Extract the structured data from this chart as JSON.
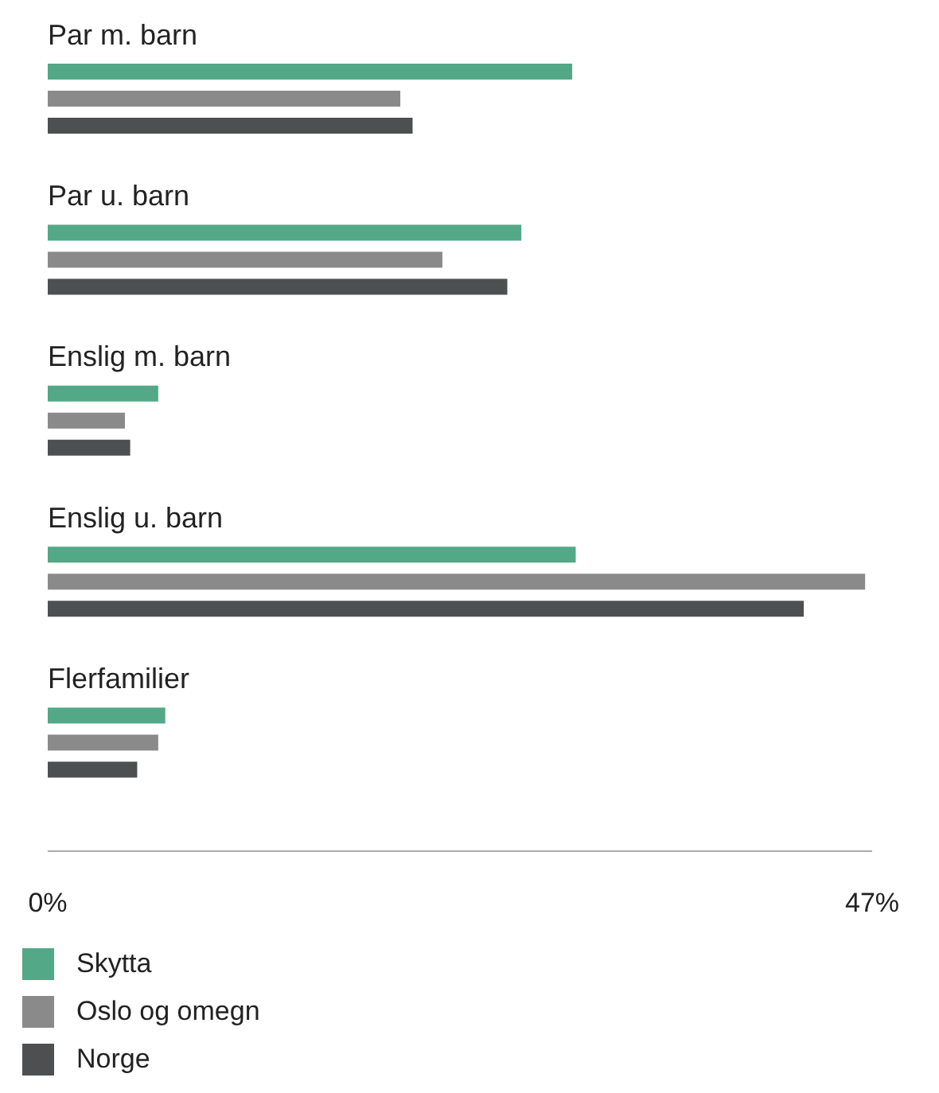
{
  "chart_data": {
    "type": "bar",
    "orientation": "horizontal",
    "categories": [
      "Par m. barn",
      "Par u. barn",
      "Enslig m. barn",
      "Enslig u. barn",
      "Flerfamilier"
    ],
    "series": [
      {
        "name": "Skytta",
        "color": "#52a887",
        "values": [
          29.9,
          27.0,
          6.3,
          30.1,
          6.7
        ]
      },
      {
        "name": "Oslo og omegn",
        "color": "#8a8a8a",
        "values": [
          20.1,
          22.5,
          4.4,
          46.6,
          6.3
        ]
      },
      {
        "name": "Norge",
        "color": "#4d4f50",
        "values": [
          20.8,
          26.2,
          4.7,
          43.1,
          5.1
        ]
      }
    ],
    "xlim": [
      0,
      47
    ],
    "xticks": [
      {
        "value": 0,
        "label": "0%"
      },
      {
        "value": 47,
        "label": "47%"
      }
    ],
    "grid": false,
    "legend": "bottom"
  }
}
